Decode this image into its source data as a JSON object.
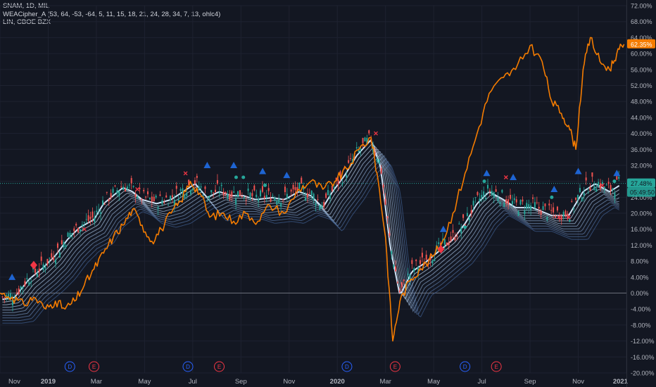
{
  "legend": {
    "symbol_line": "SNAM, 1D, MIL",
    "indicator_line": "WEACipher_A (53, 64, -53, -64, 5, 11, 15, 18, 21, 24, 28, 34, 7, 13, ohlc4)",
    "compare_line": "LIN, CBOE BZX"
  },
  "price_scale": {
    "current_label": "27.48%",
    "countdown_label": "05:49:50",
    "compare_label": "62.35%"
  },
  "colors": {
    "background": "#131722",
    "grid": "#1e2230",
    "compare_line": "#f57c00",
    "wave_light": "#cfe3f6",
    "wave_dark": "#3d5c8c",
    "candle_up": "#26a69a",
    "candle_down": "#ef5350",
    "signal_up": "#1e64d2",
    "signal_down": "#f23645",
    "label_current": "#26a69a",
    "label_compare": "#f57c00",
    "dividend": "#2962ff",
    "earnings": "#f23645"
  },
  "chart_data": {
    "type": "line",
    "x_axis_labels": [
      "Nov",
      "2019",
      "Mar",
      "May",
      "Jul",
      "Sep",
      "Nov",
      "2020",
      "Mar",
      "May",
      "Jul",
      "Sep",
      "Nov",
      "2021"
    ],
    "x_range": [
      0,
      26
    ],
    "y_range": [
      -20,
      72
    ],
    "y_tick_labels": [
      "72.00%",
      "68.00%",
      "64.00%",
      "60.00%",
      "56.00%",
      "52.00%",
      "48.00%",
      "44.00%",
      "40.00%",
      "36.00%",
      "32.00%",
      "28.00%",
      "24.00%",
      "20.00%",
      "16.00%",
      "12.00%",
      "8.00%",
      "4.00%",
      "0.00%",
      "-4.00%",
      "-8.00%",
      "-12.00%",
      "-16.00%",
      "-20.00%"
    ],
    "y_ticks": [
      72,
      68,
      64,
      60,
      56,
      52,
      48,
      44,
      40,
      36,
      32,
      28,
      24,
      20,
      16,
      12,
      8,
      4,
      0,
      -4,
      -8,
      -12,
      -16,
      -20
    ],
    "series": [
      {
        "role": "main",
        "points": [
          [
            0.1,
            -1
          ],
          [
            0.6,
            -0.5
          ],
          [
            1.2,
            4
          ],
          [
            1.8,
            7
          ],
          [
            2.3,
            10
          ],
          [
            2.8,
            14
          ],
          [
            3.3,
            17
          ],
          [
            3.9,
            19
          ],
          [
            4.3,
            23
          ],
          [
            4.7,
            25
          ],
          [
            5.1,
            27
          ],
          [
            5.5,
            26
          ],
          [
            5.9,
            24
          ],
          [
            6.5,
            23
          ],
          [
            7.1,
            24
          ],
          [
            7.6,
            26
          ],
          [
            8.1,
            28
          ],
          [
            8.6,
            24.5
          ],
          [
            9.1,
            26
          ],
          [
            9.6,
            25
          ],
          [
            10.1,
            25
          ],
          [
            10.6,
            24
          ],
          [
            11.3,
            24.5
          ],
          [
            11.8,
            24
          ],
          [
            12.4,
            26
          ],
          [
            12.9,
            25
          ],
          [
            13.4,
            22
          ],
          [
            13.8,
            26
          ],
          [
            14.3,
            30
          ],
          [
            14.8,
            35
          ],
          [
            15.4,
            39
          ],
          [
            15.8,
            32
          ],
          [
            16.2,
            12
          ],
          [
            16.6,
            0
          ],
          [
            17.1,
            6
          ],
          [
            17.6,
            8
          ],
          [
            18.2,
            11
          ],
          [
            18.8,
            14
          ],
          [
            19.3,
            18
          ],
          [
            19.8,
            23
          ],
          [
            20.3,
            26
          ],
          [
            20.9,
            24
          ],
          [
            21.4,
            22
          ],
          [
            22.1,
            22
          ],
          [
            22.9,
            20
          ],
          [
            23.6,
            20
          ],
          [
            24.2,
            26
          ],
          [
            24.7,
            28
          ],
          [
            25.3,
            26
          ],
          [
            25.7,
            27.5
          ]
        ]
      },
      {
        "role": "compare",
        "points": [
          [
            0,
            0
          ],
          [
            0.5,
            -1
          ],
          [
            1.0,
            -3
          ],
          [
            1.4,
            -1
          ],
          [
            1.9,
            -4
          ],
          [
            2.3,
            -2
          ],
          [
            2.7,
            -4
          ],
          [
            3.1,
            -2
          ],
          [
            3.5,
            2
          ],
          [
            3.9,
            6
          ],
          [
            4.3,
            10
          ],
          [
            4.7,
            14
          ],
          [
            5.1,
            17
          ],
          [
            5.5,
            21
          ],
          [
            5.9,
            17
          ],
          [
            6.3,
            13
          ],
          [
            6.7,
            16
          ],
          [
            7.1,
            20
          ],
          [
            7.5,
            23
          ],
          [
            7.9,
            28
          ],
          [
            8.3,
            25
          ],
          [
            8.7,
            19
          ],
          [
            9.2,
            20
          ],
          [
            9.7,
            18
          ],
          [
            10.2,
            20
          ],
          [
            10.7,
            18
          ],
          [
            11.2,
            22
          ],
          [
            11.8,
            20
          ],
          [
            12.4,
            26
          ],
          [
            12.9,
            28
          ],
          [
            13.4,
            26
          ],
          [
            13.9,
            28
          ],
          [
            14.4,
            31
          ],
          [
            14.9,
            36
          ],
          [
            15.4,
            39
          ],
          [
            15.7,
            28
          ],
          [
            16.0,
            14
          ],
          [
            16.3,
            -12
          ],
          [
            16.6,
            -2
          ],
          [
            17.0,
            3
          ],
          [
            17.4,
            6
          ],
          [
            17.8,
            8
          ],
          [
            18.3,
            12
          ],
          [
            18.8,
            20
          ],
          [
            19.3,
            30
          ],
          [
            19.8,
            40
          ],
          [
            20.3,
            50
          ],
          [
            20.9,
            54
          ],
          [
            21.4,
            56
          ],
          [
            22.0,
            62
          ],
          [
            22.5,
            58
          ],
          [
            22.9,
            48
          ],
          [
            23.3,
            45
          ],
          [
            23.6,
            42
          ],
          [
            23.9,
            36
          ],
          [
            24.2,
            56
          ],
          [
            24.5,
            64
          ],
          [
            24.9,
            58
          ],
          [
            25.3,
            56
          ],
          [
            25.6,
            60
          ],
          [
            25.9,
            62.35
          ]
        ]
      }
    ],
    "signals_up": [
      [
        0.5,
        4
      ],
      [
        8.6,
        32
      ],
      [
        9.7,
        32
      ],
      [
        10.9,
        30.5
      ],
      [
        11.9,
        29.5
      ],
      [
        18.4,
        16
      ],
      [
        20.2,
        30
      ],
      [
        21.3,
        29
      ],
      [
        23.0,
        26
      ],
      [
        24.0,
        30.5
      ],
      [
        25.6,
        30
      ]
    ],
    "signals_down": [
      [
        1.4,
        7
      ],
      [
        18.3,
        11
      ]
    ],
    "crosses": [
      [
        3.5,
        16
      ],
      [
        5.7,
        26
      ],
      [
        7.7,
        30
      ],
      [
        15.6,
        40
      ],
      [
        21.0,
        29
      ],
      [
        23.2,
        19
      ],
      [
        23.6,
        19
      ],
      [
        25.0,
        27
      ]
    ],
    "dots": [
      [
        9.8,
        29
      ],
      [
        10.1,
        29
      ],
      [
        11.0,
        27
      ],
      [
        19.3,
        16.5
      ],
      [
        20.1,
        28
      ],
      [
        22.9,
        24
      ],
      [
        25.5,
        28
      ]
    ],
    "events": [
      {
        "x": 2.9,
        "label": "D",
        "kind": "dividend"
      },
      {
        "x": 3.9,
        "label": "E",
        "kind": "earnings"
      },
      {
        "x": 7.8,
        "label": "D",
        "kind": "dividend"
      },
      {
        "x": 9.1,
        "label": "E",
        "kind": "earnings"
      },
      {
        "x": 14.4,
        "label": "D",
        "kind": "dividend"
      },
      {
        "x": 16.4,
        "label": "E",
        "kind": "earnings"
      },
      {
        "x": 19.3,
        "label": "D",
        "kind": "dividend"
      },
      {
        "x": 20.6,
        "label": "E",
        "kind": "earnings"
      }
    ],
    "reference_lines": [
      0,
      27.48
    ],
    "grid": true
  }
}
